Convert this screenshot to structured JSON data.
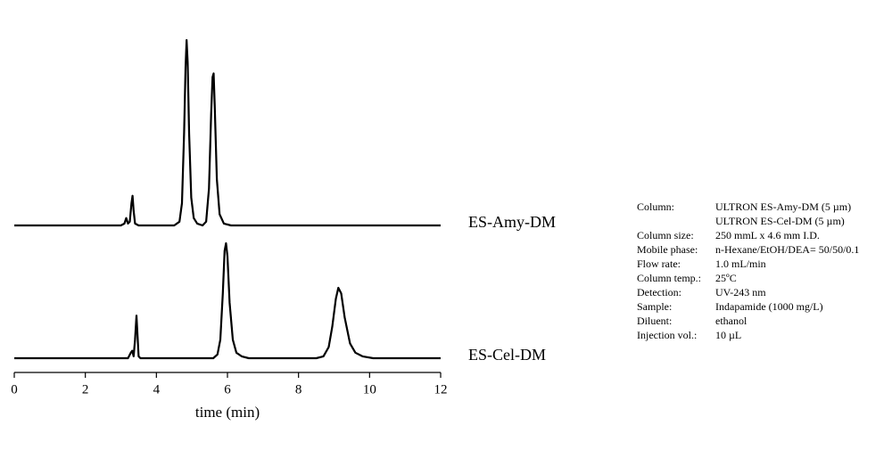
{
  "chart_data": [
    {
      "type": "line",
      "x": [
        0,
        3.0,
        3.1,
        3.15,
        3.2,
        3.25,
        3.3,
        3.33,
        3.36,
        3.4,
        3.5,
        4.5,
        4.65,
        4.72,
        4.78,
        4.82,
        4.85,
        4.88,
        4.92,
        4.98,
        5.05,
        5.15,
        5.3,
        5.4,
        5.48,
        5.54,
        5.58,
        5.61,
        5.64,
        5.7,
        5.78,
        5.9,
        6.1,
        12
      ],
      "series": [
        {
          "name": "ES-Amy-DM",
          "color": "#000000",
          "values": [
            0,
            0,
            1,
            4,
            1,
            2,
            12,
            16,
            8,
            1,
            0,
            0,
            2,
            12,
            50,
            85,
            100,
            88,
            50,
            15,
            4,
            1,
            0,
            2,
            20,
            60,
            80,
            82,
            65,
            25,
            6,
            1,
            0,
            0
          ]
        }
      ],
      "xlim": [
        0,
        12
      ],
      "ylim": [
        0,
        100
      ]
    },
    {
      "type": "line",
      "x": [
        0,
        3.0,
        3.2,
        3.28,
        3.32,
        3.36,
        3.4,
        3.44,
        3.47,
        3.5,
        3.55,
        3.7,
        5.6,
        5.72,
        5.8,
        5.87,
        5.92,
        5.96,
        6.0,
        6.06,
        6.15,
        6.25,
        6.4,
        6.6,
        8.5,
        8.7,
        8.85,
        8.95,
        9.05,
        9.12,
        9.2,
        9.3,
        9.45,
        9.6,
        9.8,
        10.1,
        12
      ],
      "series": [
        {
          "name": "ES-Cel-DM",
          "color": "#000000",
          "values": [
            0,
            0,
            0,
            3,
            4,
            1,
            10,
            23,
            12,
            1,
            0,
            0,
            0,
            2,
            10,
            35,
            58,
            62,
            55,
            30,
            10,
            3,
            1,
            0,
            0,
            1,
            6,
            17,
            32,
            38,
            35,
            22,
            8,
            3,
            1,
            0,
            0
          ]
        }
      ],
      "xlim": [
        0,
        12
      ],
      "ylim": [
        0,
        100
      ],
      "xticks": [
        0,
        2,
        4,
        6,
        8,
        10,
        12
      ],
      "xlabel": "time (min)"
    }
  ],
  "info": {
    "rows": [
      {
        "label": "Column:",
        "values": [
          "ULTRON ES-Amy-DM (5 µm)",
          "ULTRON ES-Cel-DM (5 µm)"
        ]
      },
      {
        "label": "Column size:",
        "values": [
          "250 mmL x 4.6 mm I.D."
        ]
      },
      {
        "label": "Mobile phase:",
        "values": [
          "n-Hexane/EtOH/DEA= 50/50/0.1"
        ]
      },
      {
        "label": "Flow rate:",
        "values": [
          "1.0 mL/min"
        ]
      },
      {
        "label": "Column temp.:",
        "values": [
          "25ºC"
        ]
      },
      {
        "label": "Detection:",
        "values": [
          "UV-243 nm"
        ]
      },
      {
        "label": "Sample:",
        "values": [
          "Indapamide (1000 mg/L)"
        ]
      },
      {
        "label": "Diluent:",
        "values": [
          "ethanol"
        ]
      },
      {
        "label": "Injection vol.:",
        "values": [
          "10 µL"
        ]
      }
    ]
  }
}
